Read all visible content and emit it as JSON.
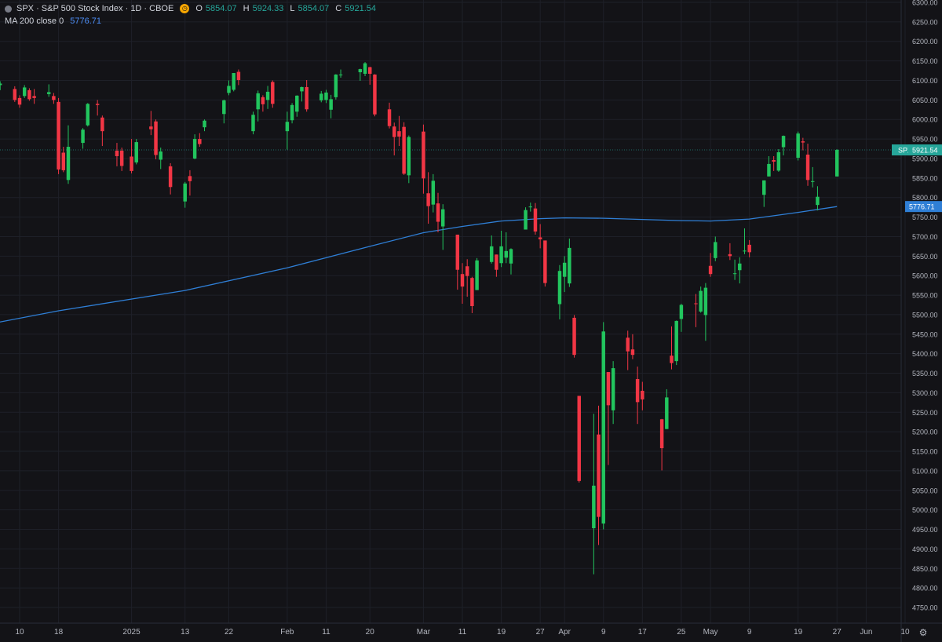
{
  "header": {
    "title": "SPX · S&P 500 Stock Index · 1D · CBOE",
    "ohlc": [
      {
        "key": "O",
        "value": "5854.07"
      },
      {
        "key": "H",
        "value": "5924.33"
      },
      {
        "key": "L",
        "value": "5854.07"
      },
      {
        "key": "C",
        "value": "5921.54"
      }
    ],
    "indicator_label": "MA 200 close 0",
    "indicator_value": "5776.71"
  },
  "colors": {
    "background": "#131317",
    "up": "#26a69a",
    "up_body": "#22c55e",
    "down": "#f23645",
    "ma": "#2f7fd6",
    "grid": "#1e2028",
    "axis_text": "#b2b5be"
  },
  "chart_data": {
    "type": "candlestick",
    "symbol": "SPX",
    "ylim": [
      4720,
      6310
    ],
    "y_ticks": [
      4750,
      4800,
      4850,
      4900,
      4950,
      5000,
      5050,
      5100,
      5150,
      5200,
      5250,
      5300,
      5350,
      5400,
      5450,
      5500,
      5550,
      5600,
      5650,
      5700,
      5750,
      5800,
      5850,
      5900,
      5950,
      6000,
      6050,
      6100,
      6150,
      6200,
      6250,
      6300
    ],
    "x_ticks": [
      {
        "label": "10",
        "date": "2024-12-10"
      },
      {
        "label": "18",
        "date": "2024-12-18"
      },
      {
        "label": "2025",
        "date": "2025-01-02"
      },
      {
        "label": "13",
        "date": "2025-01-13"
      },
      {
        "label": "22",
        "date": "2025-01-22"
      },
      {
        "label": "Feb",
        "date": "2025-02-03"
      },
      {
        "label": "11",
        "date": "2025-02-11"
      },
      {
        "label": "20",
        "date": "2025-02-20"
      },
      {
        "label": "Mar",
        "date": "2025-03-03"
      },
      {
        "label": "11",
        "date": "2025-03-11"
      },
      {
        "label": "19",
        "date": "2025-03-19"
      },
      {
        "label": "27",
        "date": "2025-03-27"
      },
      {
        "label": "Apr",
        "date": "2025-04-01"
      },
      {
        "label": "9",
        "date": "2025-04-09"
      },
      {
        "label": "17",
        "date": "2025-04-17"
      },
      {
        "label": "25",
        "date": "2025-04-25"
      },
      {
        "label": "May",
        "date": "2025-05-01"
      },
      {
        "label": "9",
        "date": "2025-05-09"
      },
      {
        "label": "19",
        "date": "2025-05-19"
      },
      {
        "label": "27",
        "date": "2025-05-27"
      },
      {
        "label": "Jun",
        "date": "2025-06-02"
      },
      {
        "label": "10",
        "date": "2025-06-10"
      }
    ],
    "candles": [
      {
        "date": "2024-12-05",
        "o": 6080,
        "h": 6098,
        "l": 6070,
        "c": 6090
      },
      {
        "date": "2024-12-06",
        "o": 6088,
        "h": 6098,
        "l": 6075,
        "c": 6092
      },
      {
        "date": "2024-12-09",
        "o": 6078,
        "h": 6085,
        "l": 6045,
        "c": 6050
      },
      {
        "date": "2024-12-10",
        "o": 6055,
        "h": 6062,
        "l": 6030,
        "c": 6038
      },
      {
        "date": "2024-12-11",
        "o": 6060,
        "h": 6088,
        "l": 6055,
        "c": 6082
      },
      {
        "date": "2024-12-12",
        "o": 6075,
        "h": 6080,
        "l": 6048,
        "c": 6052
      },
      {
        "date": "2024-12-13",
        "o": 6060,
        "h": 6078,
        "l": 6040,
        "c": 6055
      },
      {
        "date": "2024-12-16",
        "o": 6065,
        "h": 6090,
        "l": 6058,
        "c": 6070
      },
      {
        "date": "2024-12-17",
        "o": 6060,
        "h": 6068,
        "l": 6040,
        "c": 6050
      },
      {
        "date": "2024-12-18",
        "o": 6045,
        "h": 6055,
        "l": 5860,
        "c": 5872
      },
      {
        "date": "2024-12-19",
        "o": 5915,
        "h": 5930,
        "l": 5865,
        "c": 5870
      },
      {
        "date": "2024-12-20",
        "o": 5845,
        "h": 5985,
        "l": 5835,
        "c": 5930
      },
      {
        "date": "2024-12-23",
        "o": 5940,
        "h": 5978,
        "l": 5925,
        "c": 5974
      },
      {
        "date": "2024-12-24",
        "o": 5985,
        "h": 6042,
        "l": 5982,
        "c": 6040
      },
      {
        "date": "2024-12-26",
        "o": 6040,
        "h": 6050,
        "l": 6010,
        "c": 6037
      },
      {
        "date": "2024-12-27",
        "o": 6005,
        "h": 6010,
        "l": 5932,
        "c": 5970
      },
      {
        "date": "2024-12-30",
        "o": 5920,
        "h": 5940,
        "l": 5880,
        "c": 5906
      },
      {
        "date": "2024-12-31",
        "o": 5920,
        "h": 5928,
        "l": 5868,
        "c": 5881
      },
      {
        "date": "2025-01-02",
        "o": 5905,
        "h": 5950,
        "l": 5862,
        "c": 5868
      },
      {
        "date": "2025-01-03",
        "o": 5890,
        "h": 5950,
        "l": 5885,
        "c": 5942
      },
      {
        "date": "2025-01-06",
        "o": 5982,
        "h": 6022,
        "l": 5960,
        "c": 5975
      },
      {
        "date": "2025-01-07",
        "o": 5995,
        "h": 6000,
        "l": 5898,
        "c": 5909
      },
      {
        "date": "2025-01-08",
        "o": 5897,
        "h": 5928,
        "l": 5873,
        "c": 5918
      },
      {
        "date": "2025-01-10",
        "o": 5880,
        "h": 5888,
        "l": 5808,
        "c": 5827
      },
      {
        "date": "2025-01-13",
        "o": 5790,
        "h": 5840,
        "l": 5774,
        "c": 5836
      },
      {
        "date": "2025-01-14",
        "o": 5855,
        "h": 5870,
        "l": 5805,
        "c": 5842
      },
      {
        "date": "2025-01-15",
        "o": 5900,
        "h": 5962,
        "l": 5898,
        "c": 5950
      },
      {
        "date": "2025-01-16",
        "o": 5950,
        "h": 5965,
        "l": 5930,
        "c": 5937
      },
      {
        "date": "2025-01-17",
        "o": 5980,
        "h": 6000,
        "l": 5970,
        "c": 5997
      },
      {
        "date": "2025-01-21",
        "o": 6014,
        "h": 6051,
        "l": 5990,
        "c": 6049
      },
      {
        "date": "2025-01-22",
        "o": 6068,
        "h": 6100,
        "l": 6062,
        "c": 6086
      },
      {
        "date": "2025-01-23",
        "o": 6076,
        "h": 6119,
        "l": 6072,
        "c": 6119
      },
      {
        "date": "2025-01-24",
        "o": 6122,
        "h": 6128,
        "l": 6088,
        "c": 6101
      },
      {
        "date": "2025-01-27",
        "o": 5970,
        "h": 6020,
        "l": 5962,
        "c": 6012
      },
      {
        "date": "2025-01-28",
        "o": 6026,
        "h": 6074,
        "l": 5995,
        "c": 6067
      },
      {
        "date": "2025-01-29",
        "o": 6057,
        "h": 6062,
        "l": 6020,
        "c": 6039
      },
      {
        "date": "2025-01-30",
        "o": 6050,
        "h": 6086,
        "l": 6027,
        "c": 6071
      },
      {
        "date": "2025-01-31",
        "o": 6096,
        "h": 6100,
        "l": 6030,
        "c": 6040
      },
      {
        "date": "2025-02-03",
        "o": 5970,
        "h": 6020,
        "l": 5923,
        "c": 5994
      },
      {
        "date": "2025-02-04",
        "o": 5998,
        "h": 6042,
        "l": 5990,
        "c": 6037
      },
      {
        "date": "2025-02-05",
        "o": 6020,
        "h": 6062,
        "l": 6007,
        "c": 6061
      },
      {
        "date": "2025-02-06",
        "o": 6072,
        "h": 6084,
        "l": 6046,
        "c": 6083
      },
      {
        "date": "2025-02-07",
        "o": 6083,
        "h": 6101,
        "l": 6020,
        "c": 6026
      },
      {
        "date": "2025-02-10",
        "o": 6049,
        "h": 6073,
        "l": 6044,
        "c": 6066
      },
      {
        "date": "2025-02-11",
        "o": 6050,
        "h": 6076,
        "l": 6042,
        "c": 6069
      },
      {
        "date": "2025-02-12",
        "o": 6025,
        "h": 6063,
        "l": 6003,
        "c": 6052
      },
      {
        "date": "2025-02-13",
        "o": 6057,
        "h": 6116,
        "l": 6051,
        "c": 6115
      },
      {
        "date": "2025-02-14",
        "o": 6115,
        "h": 6128,
        "l": 6107,
        "c": 6115
      },
      {
        "date": "2025-02-18",
        "o": 6121,
        "h": 6130,
        "l": 6099,
        "c": 6129
      },
      {
        "date": "2025-02-19",
        "o": 6117,
        "h": 6147,
        "l": 6111,
        "c": 6144
      },
      {
        "date": "2025-02-20",
        "o": 6134,
        "h": 6135,
        "l": 6089,
        "c": 6117
      },
      {
        "date": "2025-02-21",
        "o": 6115,
        "h": 6116,
        "l": 6008,
        "c": 6013
      },
      {
        "date": "2025-02-24",
        "o": 6026,
        "h": 6043,
        "l": 5977,
        "c": 5983
      },
      {
        "date": "2025-02-25",
        "o": 5982,
        "h": 5992,
        "l": 5908,
        "c": 5955
      },
      {
        "date": "2025-02-26",
        "o": 5970,
        "h": 6009,
        "l": 5932,
        "c": 5956
      },
      {
        "date": "2025-02-27",
        "o": 5981,
        "h": 5993,
        "l": 5858,
        "c": 5861
      },
      {
        "date": "2025-02-28",
        "o": 5857,
        "h": 5959,
        "l": 5837,
        "c": 5955
      },
      {
        "date": "2025-03-03",
        "o": 5969,
        "h": 5987,
        "l": 5810,
        "c": 5849
      },
      {
        "date": "2025-03-04",
        "o": 5811,
        "h": 5865,
        "l": 5733,
        "c": 5778
      },
      {
        "date": "2025-03-05",
        "o": 5782,
        "h": 5860,
        "l": 5762,
        "c": 5843
      },
      {
        "date": "2025-03-06",
        "o": 5785,
        "h": 5812,
        "l": 5711,
        "c": 5738
      },
      {
        "date": "2025-03-07",
        "o": 5726,
        "h": 5783,
        "l": 5666,
        "c": 5770
      },
      {
        "date": "2025-03-10",
        "o": 5705,
        "h": 5705,
        "l": 5564,
        "c": 5615
      },
      {
        "date": "2025-03-11",
        "o": 5604,
        "h": 5632,
        "l": 5528,
        "c": 5572
      },
      {
        "date": "2025-03-12",
        "o": 5624,
        "h": 5642,
        "l": 5546,
        "c": 5599
      },
      {
        "date": "2025-03-13",
        "o": 5594,
        "h": 5597,
        "l": 5504,
        "c": 5522
      },
      {
        "date": "2025-03-14",
        "o": 5563,
        "h": 5645,
        "l": 5563,
        "c": 5639
      },
      {
        "date": "2025-03-17",
        "o": 5635,
        "h": 5703,
        "l": 5631,
        "c": 5675
      },
      {
        "date": "2025-03-18",
        "o": 5654,
        "h": 5654,
        "l": 5597,
        "c": 5615
      },
      {
        "date": "2025-03-19",
        "o": 5632,
        "h": 5715,
        "l": 5622,
        "c": 5675
      },
      {
        "date": "2025-03-20",
        "o": 5646,
        "h": 5711,
        "l": 5632,
        "c": 5663
      },
      {
        "date": "2025-03-21",
        "o": 5631,
        "h": 5670,
        "l": 5603,
        "c": 5668
      },
      {
        "date": "2025-03-24",
        "o": 5718,
        "h": 5775,
        "l": 5718,
        "c": 5768
      },
      {
        "date": "2025-03-25",
        "o": 5775,
        "h": 5787,
        "l": 5764,
        "c": 5777
      },
      {
        "date": "2025-03-26",
        "o": 5772,
        "h": 5786,
        "l": 5705,
        "c": 5713
      },
      {
        "date": "2025-03-27",
        "o": 5698,
        "h": 5732,
        "l": 5670,
        "c": 5693
      },
      {
        "date": "2025-03-28",
        "o": 5690,
        "h": 5690,
        "l": 5572,
        "c": 5581
      },
      {
        "date": "2025-03-31",
        "o": 5527,
        "h": 5627,
        "l": 5488,
        "c": 5612
      },
      {
        "date": "2025-04-01",
        "o": 5597,
        "h": 5650,
        "l": 5558,
        "c": 5633
      },
      {
        "date": "2025-04-02",
        "o": 5580,
        "h": 5695,
        "l": 5571,
        "c": 5671
      },
      {
        "date": "2025-04-03",
        "o": 5492,
        "h": 5499,
        "l": 5390,
        "c": 5397
      },
      {
        "date": "2025-04-04",
        "o": 5292,
        "h": 5292,
        "l": 5070,
        "c": 5074
      },
      {
        "date": "2025-04-07",
        "o": 4953,
        "h": 5246,
        "l": 4835,
        "c": 5062
      },
      {
        "date": "2025-04-08",
        "o": 5193,
        "h": 5267,
        "l": 4910,
        "c": 4982
      },
      {
        "date": "2025-04-09",
        "o": 4965,
        "h": 5481,
        "l": 4950,
        "c": 5457
      },
      {
        "date": "2025-04-10",
        "o": 5353,
        "h": 5353,
        "l": 5115,
        "c": 5268
      },
      {
        "date": "2025-04-11",
        "o": 5255,
        "h": 5381,
        "l": 5220,
        "c": 5363
      },
      {
        "date": "2025-04-14",
        "o": 5441,
        "h": 5459,
        "l": 5358,
        "c": 5406
      },
      {
        "date": "2025-04-15",
        "o": 5411,
        "h": 5450,
        "l": 5386,
        "c": 5397
      },
      {
        "date": "2025-04-16",
        "o": 5335,
        "h": 5367,
        "l": 5220,
        "c": 5276
      },
      {
        "date": "2025-04-17",
        "o": 5305,
        "h": 5328,
        "l": 5255,
        "c": 5283
      },
      {
        "date": "2025-04-21",
        "o": 5232,
        "h": 5233,
        "l": 5101,
        "c": 5158
      },
      {
        "date": "2025-04-22",
        "o": 5207,
        "h": 5309,
        "l": 5207,
        "c": 5288
      },
      {
        "date": "2025-04-23",
        "o": 5395,
        "h": 5470,
        "l": 5360,
        "c": 5376
      },
      {
        "date": "2025-04-24",
        "o": 5381,
        "h": 5485,
        "l": 5371,
        "c": 5484
      },
      {
        "date": "2025-04-25",
        "o": 5489,
        "h": 5528,
        "l": 5456,
        "c": 5525
      },
      {
        "date": "2025-04-28",
        "o": 5529,
        "h": 5553,
        "l": 5468,
        "c": 5528
      },
      {
        "date": "2025-04-29",
        "o": 5508,
        "h": 5572,
        "l": 5505,
        "c": 5561
      },
      {
        "date": "2025-04-30",
        "o": 5499,
        "h": 5581,
        "l": 5433,
        "c": 5569
      },
      {
        "date": "2025-05-01",
        "o": 5625,
        "h": 5658,
        "l": 5597,
        "c": 5604
      },
      {
        "date": "2025-05-02",
        "o": 5645,
        "h": 5700,
        "l": 5637,
        "c": 5686
      },
      {
        "date": "2025-05-05",
        "o": 5655,
        "h": 5683,
        "l": 5640,
        "c": 5650
      },
      {
        "date": "2025-05-06",
        "o": 5606,
        "h": 5641,
        "l": 5589,
        "c": 5606
      },
      {
        "date": "2025-05-07",
        "o": 5614,
        "h": 5647,
        "l": 5580,
        "c": 5631
      },
      {
        "date": "2025-05-08",
        "o": 5663,
        "h": 5721,
        "l": 5655,
        "c": 5664
      },
      {
        "date": "2025-05-09",
        "o": 5679,
        "h": 5691,
        "l": 5647,
        "c": 5660
      },
      {
        "date": "2025-05-12",
        "o": 5807,
        "h": 5844,
        "l": 5776,
        "c": 5844
      },
      {
        "date": "2025-05-13",
        "o": 5854,
        "h": 5906,
        "l": 5854,
        "c": 5886
      },
      {
        "date": "2025-05-14",
        "o": 5896,
        "h": 5906,
        "l": 5868,
        "c": 5892
      },
      {
        "date": "2025-05-15",
        "o": 5869,
        "h": 5924,
        "l": 5866,
        "c": 5916
      },
      {
        "date": "2025-05-16",
        "o": 5929,
        "h": 5959,
        "l": 5908,
        "c": 5958
      },
      {
        "date": "2025-05-19",
        "o": 5902,
        "h": 5969,
        "l": 5895,
        "c": 5964
      },
      {
        "date": "2025-05-20",
        "o": 5944,
        "h": 5953,
        "l": 5921,
        "c": 5941
      },
      {
        "date": "2025-05-21",
        "o": 5910,
        "h": 5938,
        "l": 5830,
        "c": 5845
      },
      {
        "date": "2025-05-22",
        "o": 5841,
        "h": 5878,
        "l": 5826,
        "c": 5842
      },
      {
        "date": "2025-05-23",
        "o": 5781,
        "h": 5829,
        "l": 5767,
        "c": 5802
      },
      {
        "date": "2025-05-27",
        "o": 5854,
        "h": 5924,
        "l": 5854,
        "c": 5922
      }
    ],
    "ma_points": [
      {
        "date": "2024-12-05",
        "v": 5479
      },
      {
        "date": "2024-12-18",
        "v": 5510
      },
      {
        "date": "2025-01-13",
        "v": 5562
      },
      {
        "date": "2025-02-03",
        "v": 5620
      },
      {
        "date": "2025-02-20",
        "v": 5675
      },
      {
        "date": "2025-03-03",
        "v": 5710
      },
      {
        "date": "2025-03-11",
        "v": 5726
      },
      {
        "date": "2025-03-19",
        "v": 5740
      },
      {
        "date": "2025-03-27",
        "v": 5746
      },
      {
        "date": "2025-04-01",
        "v": 5748
      },
      {
        "date": "2025-04-09",
        "v": 5747
      },
      {
        "date": "2025-04-17",
        "v": 5744
      },
      {
        "date": "2025-04-25",
        "v": 5741
      },
      {
        "date": "2025-05-01",
        "v": 5740
      },
      {
        "date": "2025-05-09",
        "v": 5745
      },
      {
        "date": "2025-05-19",
        "v": 5762
      },
      {
        "date": "2025-05-27",
        "v": 5777
      }
    ],
    "price_label": {
      "name": "SPX",
      "value": "5921.54"
    },
    "ma_label": {
      "value": "5776.71"
    }
  }
}
